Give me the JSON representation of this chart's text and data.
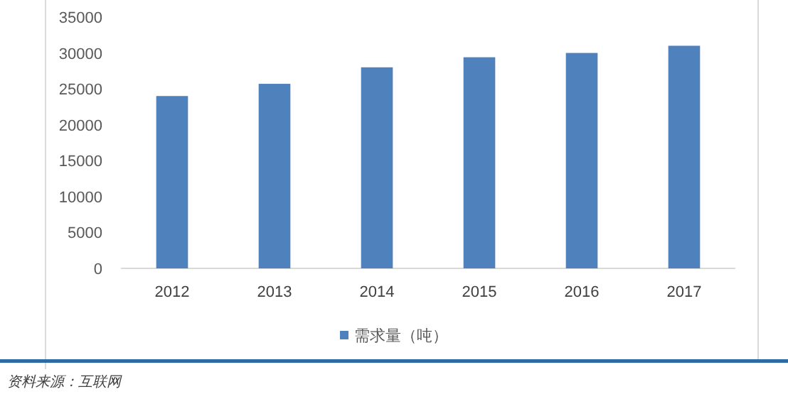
{
  "chart_data": {
    "type": "bar",
    "categories": [
      "2012",
      "2013",
      "2014",
      "2015",
      "2016",
      "2017"
    ],
    "series": [
      {
        "name": "需求量（吨）",
        "color": "#4f81bd",
        "values": [
          24000,
          25700,
          28000,
          29400,
          30000,
          31000
        ]
      }
    ],
    "ylim": [
      0,
      35000
    ],
    "yticks": [
      0,
      5000,
      10000,
      15000,
      20000,
      25000,
      30000,
      35000
    ],
    "grid": false,
    "legend": "bottom",
    "annotations": [
      "资料来源：互联网"
    ]
  }
}
